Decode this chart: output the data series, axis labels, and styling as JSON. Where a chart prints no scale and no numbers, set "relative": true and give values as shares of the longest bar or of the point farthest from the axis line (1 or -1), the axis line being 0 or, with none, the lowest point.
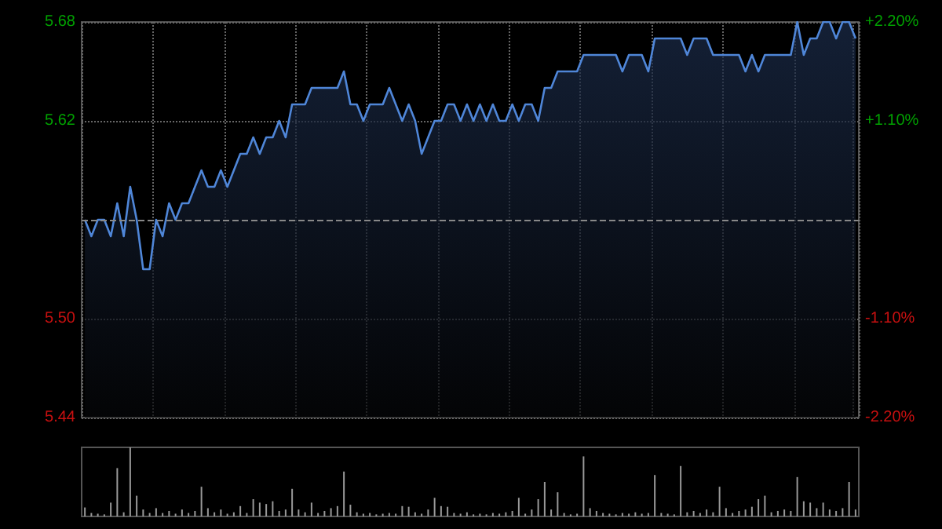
{
  "chart_data": [
    {
      "type": "area",
      "categories": [
        null,
        null,
        null,
        null,
        null,
        null,
        null,
        null,
        null,
        null,
        null,
        null,
        null,
        null,
        null,
        null,
        null,
        null,
        null,
        null,
        null,
        null,
        null,
        null,
        null,
        null,
        null,
        null,
        null,
        null,
        null,
        null,
        null,
        null,
        null,
        null,
        null,
        null,
        null,
        null,
        null,
        null,
        null,
        null,
        null,
        null,
        null,
        null,
        null,
        null,
        null,
        null,
        null,
        null,
        null,
        null,
        null,
        null,
        null,
        null,
        null,
        null,
        null,
        null,
        null,
        null,
        null,
        null,
        null,
        null,
        null,
        null,
        null,
        null,
        null,
        null,
        null,
        null,
        null,
        null,
        null,
        null,
        null,
        null,
        null,
        null,
        null,
        null,
        null,
        null,
        null,
        null,
        null,
        null,
        null,
        null,
        null,
        null,
        null,
        null,
        null,
        null,
        null,
        null,
        null,
        null,
        null,
        null,
        null,
        null,
        null,
        null,
        null,
        null,
        null,
        null,
        null,
        null,
        null,
        null
      ],
      "series": [
        {
          "color": "#4f86d8",
          "values": [
            5.56,
            5.55,
            5.56,
            5.56,
            5.55,
            5.57,
            5.55,
            5.58,
            5.56,
            5.53,
            5.53,
            5.56,
            5.55,
            5.57,
            5.56,
            5.57,
            5.57,
            5.58,
            5.59,
            5.58,
            5.58,
            5.59,
            5.58,
            5.59,
            5.6,
            5.6,
            5.61,
            5.6,
            5.61,
            5.61,
            5.62,
            5.61,
            5.63,
            5.63,
            5.63,
            5.64,
            5.64,
            5.64,
            5.64,
            5.64,
            5.65,
            5.63,
            5.63,
            5.62,
            5.63,
            5.63,
            5.63,
            5.64,
            5.63,
            5.62,
            5.63,
            5.62,
            5.6,
            5.61,
            5.62,
            5.62,
            5.63,
            5.63,
            5.62,
            5.63,
            5.62,
            5.63,
            5.62,
            5.63,
            5.62,
            5.62,
            5.63,
            5.62,
            5.63,
            5.63,
            5.62,
            5.64,
            5.64,
            5.65,
            5.65,
            5.65,
            5.65,
            5.66,
            5.66,
            5.66,
            5.66,
            5.66,
            5.66,
            5.65,
            5.66,
            5.66,
            5.66,
            5.65,
            5.67,
            5.67,
            5.67,
            5.67,
            5.67,
            5.66,
            5.67,
            5.67,
            5.67,
            5.66,
            5.66,
            5.66,
            5.66,
            5.66,
            5.65,
            5.66,
            5.65,
            5.66,
            5.66,
            5.66,
            5.66,
            5.66,
            5.68,
            5.66,
            5.67,
            5.67,
            5.68,
            5.68,
            5.67,
            5.68,
            5.68,
            5.67
          ]
        }
      ],
      "ylim": [
        5.44,
        5.68
      ],
      "yticks": [
        5.44,
        {
          "value": 5.5,
          "label": "5.50"
        },
        5.62,
        5.68
      ],
      "y2lim": [
        -2.2,
        2.2
      ],
      "y2ticks": [
        {
          "value": -2.2,
          "label": "-2.20%"
        },
        {
          "value": -1.1,
          "label": "-1.10%"
        },
        {
          "value": 1.1,
          "label": "+1.10%"
        },
        {
          "value": 2.2,
          "label": "+2.20%"
        }
      ],
      "ref_lines": [
        {
          "axis": "y",
          "value": 5.56,
          "color": "#888888",
          "line_style": "dashed"
        }
      ],
      "grid": true,
      "marker": "none",
      "line_style": "solid"
    },
    {
      "type": "bar",
      "relative": true,
      "categories": [
        null,
        null,
        null,
        null,
        null,
        null,
        null,
        null,
        null,
        null,
        null,
        null,
        null,
        null,
        null,
        null,
        null,
        null,
        null,
        null,
        null,
        null,
        null,
        null,
        null,
        null,
        null,
        null,
        null,
        null,
        null,
        null,
        null,
        null,
        null,
        null,
        null,
        null,
        null,
        null,
        null,
        null,
        null,
        null,
        null,
        null,
        null,
        null,
        null,
        null,
        null,
        null,
        null,
        null,
        null,
        null,
        null,
        null,
        null,
        null,
        null,
        null,
        null,
        null,
        null,
        null,
        null,
        null,
        null,
        null,
        null,
        null,
        null,
        null,
        null,
        null,
        null,
        null,
        null,
        null,
        null,
        null,
        null,
        null,
        null,
        null,
        null,
        null,
        null,
        null,
        null,
        null,
        null,
        null,
        null,
        null,
        null,
        null,
        null,
        null,
        null,
        null,
        null,
        null,
        null,
        null,
        null,
        null,
        null,
        null,
        null,
        null,
        null,
        null,
        null,
        null,
        null,
        null,
        null,
        null
      ],
      "values": [
        0.13,
        0.05,
        0.04,
        0.03,
        0.2,
        0.7,
        0.06,
        1.0,
        0.3,
        0.1,
        0.05,
        0.12,
        0.05,
        0.08,
        0.04,
        0.1,
        0.05,
        0.08,
        0.43,
        0.12,
        0.06,
        0.1,
        0.04,
        0.06,
        0.15,
        0.05,
        0.25,
        0.2,
        0.18,
        0.22,
        0.08,
        0.1,
        0.4,
        0.1,
        0.06,
        0.2,
        0.05,
        0.08,
        0.12,
        0.15,
        0.65,
        0.17,
        0.06,
        0.04,
        0.05,
        0.03,
        0.04,
        0.05,
        0.04,
        0.15,
        0.14,
        0.06,
        0.04,
        0.1,
        0.27,
        0.15,
        0.14,
        0.05,
        0.04,
        0.06,
        0.03,
        0.04,
        0.03,
        0.05,
        0.04,
        0.06,
        0.08,
        0.27,
        0.04,
        0.1,
        0.25,
        0.5,
        0.1,
        0.35,
        0.05,
        0.03,
        0.04,
        0.87,
        0.12,
        0.08,
        0.05,
        0.04,
        0.03,
        0.05,
        0.04,
        0.06,
        0.04,
        0.05,
        0.6,
        0.05,
        0.04,
        0.03,
        0.73,
        0.06,
        0.08,
        0.05,
        0.1,
        0.06,
        0.43,
        0.12,
        0.05,
        0.08,
        0.1,
        0.14,
        0.25,
        0.3,
        0.06,
        0.08,
        0.1,
        0.08,
        0.57,
        0.22,
        0.2,
        0.12,
        0.2,
        0.1,
        0.08,
        0.12,
        0.5,
        0.1
      ],
      "color": "#999999"
    }
  ]
}
